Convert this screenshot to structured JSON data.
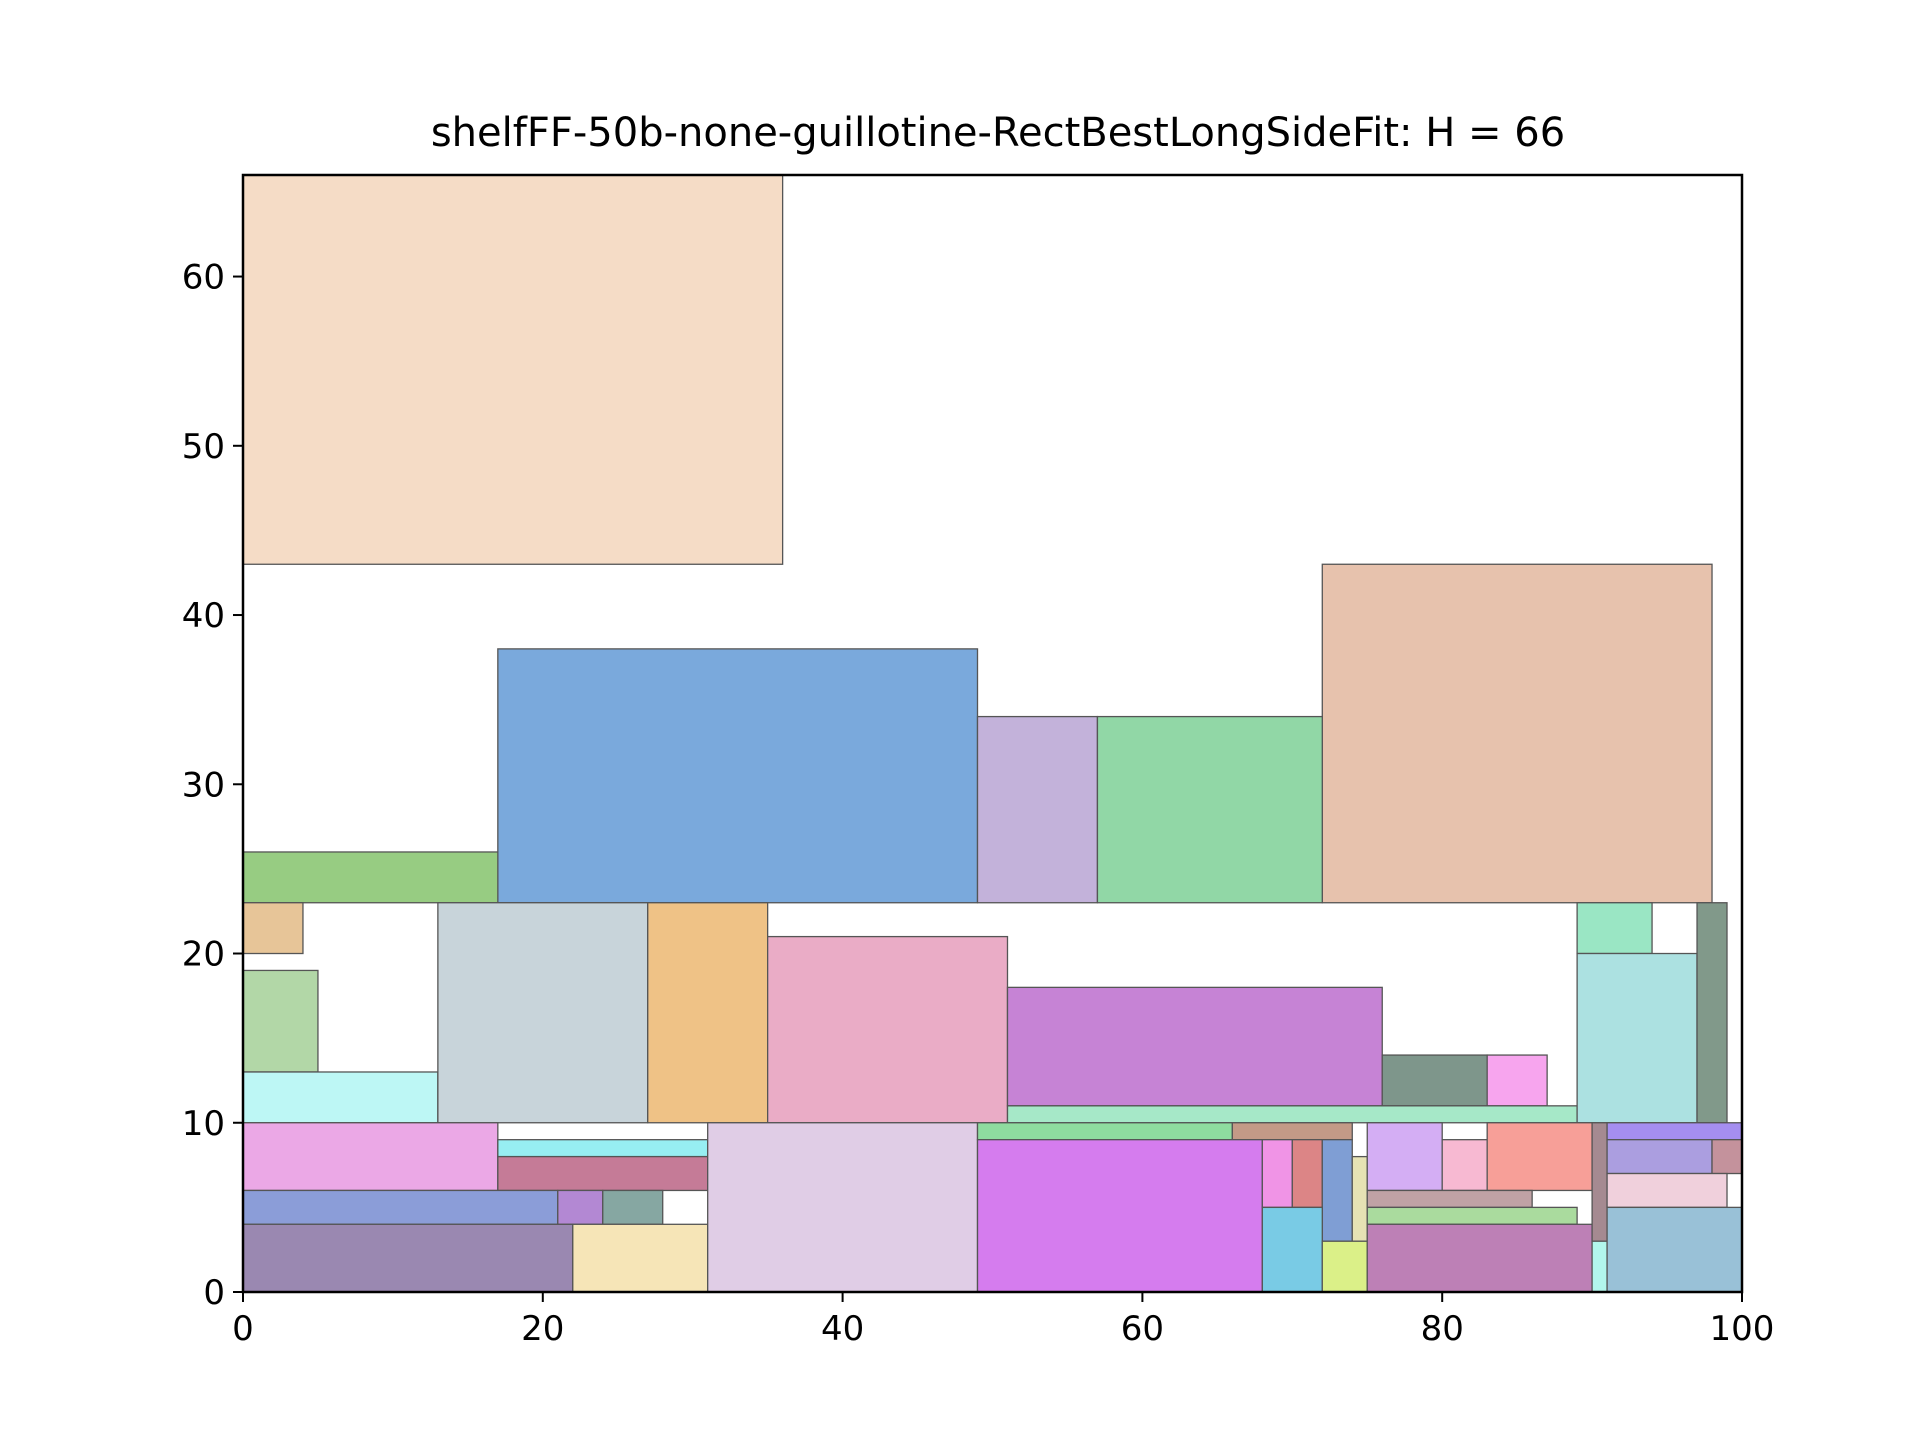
{
  "chart_data": {
    "type": "rectangle-packing",
    "title": "shelfFF-50b-none-guillotine-RectBestLongSideFit: H = 66",
    "xlabel": "",
    "ylabel": "",
    "xlim": [
      0,
      100
    ],
    "ylim": [
      0,
      66
    ],
    "xticks": [
      "0",
      "20",
      "40",
      "60",
      "80",
      "100"
    ],
    "yticks": [
      "0",
      "10",
      "20",
      "30",
      "40",
      "50",
      "60"
    ],
    "grid": false,
    "rects": [
      {
        "x": 0,
        "y": 43,
        "w": 36,
        "h": 23,
        "color": "#f5dcc6"
      },
      {
        "x": 72,
        "y": 23,
        "w": 26,
        "h": 20,
        "color": "#e7c2ad"
      },
      {
        "x": 17,
        "y": 23,
        "w": 32,
        "h": 15,
        "color": "#7aa9dc"
      },
      {
        "x": 49,
        "y": 23,
        "w": 8,
        "h": 11,
        "color": "#c3b2da"
      },
      {
        "x": 57,
        "y": 23,
        "w": 15,
        "h": 11,
        "color": "#91d7a6"
      },
      {
        "x": 0,
        "y": 23,
        "w": 17,
        "h": 3,
        "color": "#97cc82"
      },
      {
        "x": 0,
        "y": 20,
        "w": 4,
        "h": 3,
        "color": "#e7c598"
      },
      {
        "x": 0,
        "y": 13,
        "w": 5,
        "h": 6,
        "color": "#b2d7a7"
      },
      {
        "x": 0,
        "y": 10,
        "w": 13,
        "h": 3,
        "color": "#bdf7f5"
      },
      {
        "x": 13,
        "y": 10,
        "w": 14,
        "h": 13,
        "color": "#c8d4da"
      },
      {
        "x": 27,
        "y": 10,
        "w": 8,
        "h": 13,
        "color": "#efc286"
      },
      {
        "x": 35,
        "y": 10,
        "w": 16,
        "h": 11,
        "color": "#eaacc6"
      },
      {
        "x": 51,
        "y": 11,
        "w": 25,
        "h": 7,
        "color": "#c683d5"
      },
      {
        "x": 76,
        "y": 11,
        "w": 7,
        "h": 3,
        "color": "#7e968b"
      },
      {
        "x": 83,
        "y": 11,
        "w": 4,
        "h": 3,
        "color": "#f7a5ee"
      },
      {
        "x": 51,
        "y": 10,
        "w": 38,
        "h": 1,
        "color": "#a6e8c8"
      },
      {
        "x": 89,
        "y": 20,
        "w": 5,
        "h": 3,
        "color": "#9ae6c4"
      },
      {
        "x": 89,
        "y": 10,
        "w": 8,
        "h": 10,
        "color": "#ace1e1"
      },
      {
        "x": 97,
        "y": 10,
        "w": 2,
        "h": 13,
        "color": "#81998a"
      },
      {
        "x": 0,
        "y": 6,
        "w": 17,
        "h": 4,
        "color": "#eba8e6"
      },
      {
        "x": 17,
        "y": 8,
        "w": 14,
        "h": 1,
        "color": "#97eef2"
      },
      {
        "x": 17,
        "y": 6,
        "w": 14,
        "h": 2,
        "color": "#c57b97"
      },
      {
        "x": 0,
        "y": 4,
        "w": 21,
        "h": 2,
        "color": "#8b9dd8"
      },
      {
        "x": 21,
        "y": 4,
        "w": 3,
        "h": 2,
        "color": "#b388d3"
      },
      {
        "x": 24,
        "y": 4,
        "w": 4,
        "h": 2,
        "color": "#86a7a2"
      },
      {
        "x": 0,
        "y": 0,
        "w": 22,
        "h": 4,
        "color": "#9a88b1"
      },
      {
        "x": 22,
        "y": 0,
        "w": 9,
        "h": 4,
        "color": "#f6e5b7"
      },
      {
        "x": 31,
        "y": 0,
        "w": 18,
        "h": 10,
        "color": "#e0cde6"
      },
      {
        "x": 49,
        "y": 9,
        "w": 17,
        "h": 1,
        "color": "#8edc9f"
      },
      {
        "x": 66,
        "y": 9,
        "w": 8,
        "h": 1,
        "color": "#c39a87"
      },
      {
        "x": 49,
        "y": 0,
        "w": 19,
        "h": 9,
        "color": "#d57cee"
      },
      {
        "x": 68,
        "y": 5,
        "w": 2,
        "h": 4,
        "color": "#f094e6"
      },
      {
        "x": 70,
        "y": 5,
        "w": 2,
        "h": 4,
        "color": "#dc8586"
      },
      {
        "x": 72,
        "y": 3,
        "w": 2,
        "h": 6,
        "color": "#7f9ed4"
      },
      {
        "x": 74,
        "y": 3,
        "w": 1,
        "h": 5,
        "color": "#e6e2b4"
      },
      {
        "x": 68,
        "y": 0,
        "w": 4,
        "h": 5,
        "color": "#79cbe5"
      },
      {
        "x": 72,
        "y": 0,
        "w": 3,
        "h": 3,
        "color": "#dbf088"
      },
      {
        "x": 75,
        "y": 6,
        "w": 5,
        "h": 4,
        "color": "#d4aef4"
      },
      {
        "x": 80,
        "y": 6,
        "w": 3,
        "h": 3,
        "color": "#f7b9d2"
      },
      {
        "x": 83,
        "y": 6,
        "w": 7,
        "h": 4,
        "color": "#f79f98"
      },
      {
        "x": 75,
        "y": 5,
        "w": 11,
        "h": 1,
        "color": "#c0a2a5"
      },
      {
        "x": 75,
        "y": 4,
        "w": 14,
        "h": 1,
        "color": "#aadb9e"
      },
      {
        "x": 75,
        "y": 0,
        "w": 15,
        "h": 4,
        "color": "#bd80b6"
      },
      {
        "x": 90,
        "y": 3,
        "w": 1,
        "h": 7,
        "color": "#a58a91"
      },
      {
        "x": 90,
        "y": 0,
        "w": 1,
        "h": 3,
        "color": "#b2f6ec"
      },
      {
        "x": 91,
        "y": 9,
        "w": 9,
        "h": 1,
        "color": "#a58ef0"
      },
      {
        "x": 91,
        "y": 7,
        "w": 7,
        "h": 2,
        "color": "#ab9ee0"
      },
      {
        "x": 98,
        "y": 7,
        "w": 2,
        "h": 2,
        "color": "#c4929c"
      },
      {
        "x": 91,
        "y": 5,
        "w": 8,
        "h": 2,
        "color": "#f0d0dc"
      },
      {
        "x": 91,
        "y": 0,
        "w": 9,
        "h": 5,
        "color": "#99c1d7"
      }
    ]
  }
}
